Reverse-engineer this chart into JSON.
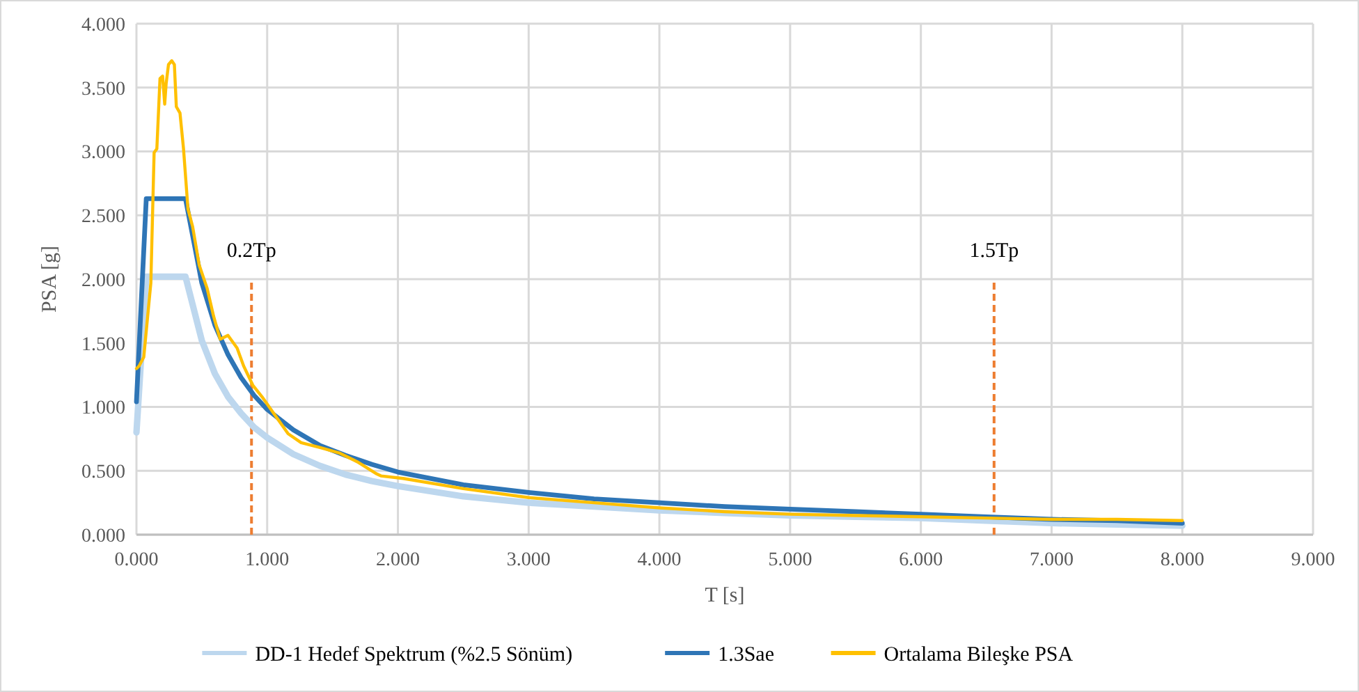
{
  "chart_data": {
    "type": "line",
    "xlabel": "T [s]",
    "ylabel": "PSA [g]",
    "xlim": [
      0,
      9
    ],
    "ylim": [
      0,
      4
    ],
    "xticks": [
      {
        "value": 0,
        "label": "0.000"
      },
      {
        "value": 1,
        "label": "1.000"
      },
      {
        "value": 2,
        "label": "2.000"
      },
      {
        "value": 3,
        "label": "3.000"
      },
      {
        "value": 4,
        "label": "4.000"
      },
      {
        "value": 5,
        "label": "5.000"
      },
      {
        "value": 6,
        "label": "6.000"
      },
      {
        "value": 7,
        "label": "7.000"
      },
      {
        "value": 8,
        "label": "8.000"
      },
      {
        "value": 9,
        "label": "9.000"
      }
    ],
    "yticks": [
      {
        "value": 0,
        "label": "0.000"
      },
      {
        "value": 0.5,
        "label": "0.500"
      },
      {
        "value": 1,
        "label": "1.000"
      },
      {
        "value": 1.5,
        "label": "1.500"
      },
      {
        "value": 2,
        "label": "2.000"
      },
      {
        "value": 2.5,
        "label": "2.500"
      },
      {
        "value": 3,
        "label": "3.000"
      },
      {
        "value": 3.5,
        "label": "3.500"
      },
      {
        "value": 4,
        "label": "4.000"
      }
    ],
    "grid": true,
    "legend": "bottom",
    "marker": "none",
    "line_style": "solid",
    "series": [
      {
        "name": "DD-1 Hedef Spektrum (%2.5 Sönüm)",
        "color": "#bdd7ee",
        "x": [
          0,
          0.075,
          0.375,
          0.5,
          0.6,
          0.7,
          0.8,
          0.9,
          1.0,
          1.2,
          1.4,
          1.6,
          1.8,
          2.0,
          2.5,
          3,
          3.5,
          4,
          4.5,
          5,
          5.5,
          6,
          6.5,
          7,
          7.5,
          8
        ],
        "values": [
          0.8,
          2.02,
          2.02,
          1.52,
          1.26,
          1.08,
          0.95,
          0.84,
          0.76,
          0.63,
          0.54,
          0.47,
          0.42,
          0.38,
          0.3,
          0.25,
          0.22,
          0.19,
          0.17,
          0.15,
          0.14,
          0.13,
          0.11,
          0.09,
          0.08,
          0.07
        ]
      },
      {
        "name": "1.3Sae",
        "color": "#2e75b6",
        "x": [
          0,
          0.075,
          0.375,
          0.5,
          0.6,
          0.7,
          0.8,
          0.9,
          1.0,
          1.2,
          1.4,
          1.6,
          1.8,
          2.0,
          2.5,
          3,
          3.5,
          4,
          4.5,
          5,
          5.5,
          6,
          6.5,
          7,
          7.5,
          8
        ],
        "values": [
          1.04,
          2.63,
          2.63,
          1.97,
          1.64,
          1.41,
          1.23,
          1.09,
          0.98,
          0.82,
          0.7,
          0.62,
          0.55,
          0.49,
          0.39,
          0.33,
          0.28,
          0.25,
          0.22,
          0.2,
          0.18,
          0.16,
          0.14,
          0.12,
          0.11,
          0.09
        ]
      },
      {
        "name": "Ortalama Bileşke PSA",
        "color": "#ffc000",
        "x": [
          0,
          0.02,
          0.056,
          0.11,
          0.135,
          0.156,
          0.18,
          0.2,
          0.216,
          0.227,
          0.245,
          0.27,
          0.29,
          0.305,
          0.333,
          0.36,
          0.394,
          0.43,
          0.48,
          0.54,
          0.59,
          0.64,
          0.7,
          0.77,
          0.82,
          0.89,
          0.96,
          1.05,
          1.16,
          1.26,
          1.41,
          1.55,
          1.69,
          1.83,
          1.87,
          2.04,
          2.5,
          3,
          3.5,
          4,
          4.5,
          5,
          5.5,
          6,
          6.5,
          7,
          7.5,
          8
        ],
        "values": [
          1.3,
          1.32,
          1.39,
          1.97,
          2.99,
          3.02,
          3.57,
          3.59,
          3.37,
          3.53,
          3.68,
          3.71,
          3.68,
          3.35,
          3.3,
          3.02,
          2.55,
          2.41,
          2.11,
          1.93,
          1.71,
          1.53,
          1.56,
          1.46,
          1.32,
          1.17,
          1.08,
          0.95,
          0.79,
          0.72,
          0.68,
          0.64,
          0.57,
          0.48,
          0.46,
          0.44,
          0.36,
          0.29,
          0.25,
          0.21,
          0.18,
          0.16,
          0.15,
          0.14,
          0.13,
          0.12,
          0.12,
          0.11
        ]
      }
    ],
    "ref_lines": [
      {
        "axis": "x",
        "value": 0.88,
        "label": "0.2Tp",
        "color": "#ed7d31",
        "line_style": "dashed"
      },
      {
        "axis": "x",
        "value": 6.56,
        "label": "1.5Tp",
        "color": "#ed7d31",
        "line_style": "dashed"
      }
    ]
  }
}
